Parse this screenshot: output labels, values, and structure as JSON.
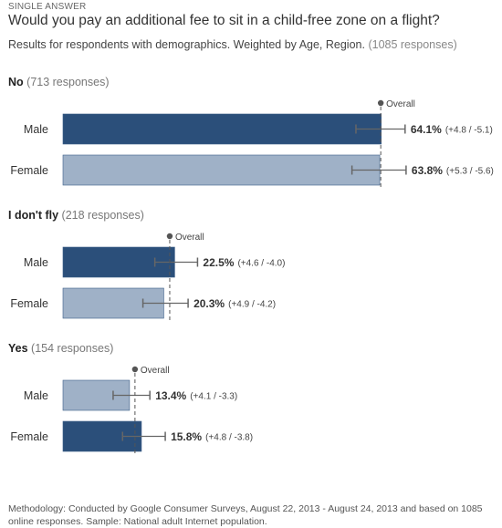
{
  "header": {
    "kicker": "SINGLE ANSWER",
    "title": "Would you pay an additional fee to sit in a child-free zone on a flight?",
    "subtitle_main": "Results for respondents with demographics. Weighted by Age, Region.",
    "subtitle_count": "(1085 responses)"
  },
  "overall_label": "Overall",
  "footer": {
    "methodology": "Methodology: Conducted by Google Consumer Surveys, August 22, 2013 - August 24, 2013 and based on 1085 online responses. Sample: National adult Internet population."
  },
  "colors": {
    "dark": "#2b4f7a",
    "light": "#9fb1c7",
    "errorbar": "#666666",
    "overall_line": "#555555"
  },
  "chart_data": {
    "type": "bar",
    "orientation": "horizontal",
    "xlim": [
      0,
      100
    ],
    "units": "%",
    "groups": [
      {
        "answer": "No",
        "responses_text": "(713 responses)",
        "overall": 64.0,
        "bars": [
          {
            "label": "Male",
            "value": 64.1,
            "value_text": "64.1%",
            "ci_plus": 4.8,
            "ci_minus": 5.1,
            "ci_text": "(+4.8 / -5.1)",
            "shade": "dark"
          },
          {
            "label": "Female",
            "value": 63.8,
            "value_text": "63.8%",
            "ci_plus": 5.3,
            "ci_minus": 5.6,
            "ci_text": "(+5.3 / -5.6)",
            "shade": "light"
          }
        ]
      },
      {
        "answer": "I don't fly",
        "responses_text": "(218 responses)",
        "overall": 21.5,
        "bars": [
          {
            "label": "Male",
            "value": 22.5,
            "value_text": "22.5%",
            "ci_plus": 4.6,
            "ci_minus": 4.0,
            "ci_text": "(+4.6 / -4.0)",
            "shade": "dark"
          },
          {
            "label": "Female",
            "value": 20.3,
            "value_text": "20.3%",
            "ci_plus": 4.9,
            "ci_minus": 4.2,
            "ci_text": "(+4.9 / -4.2)",
            "shade": "light"
          }
        ]
      },
      {
        "answer": "Yes",
        "responses_text": "(154 responses)",
        "overall": 14.5,
        "bars": [
          {
            "label": "Male",
            "value": 13.4,
            "value_text": "13.4%",
            "ci_plus": 4.1,
            "ci_minus": 3.3,
            "ci_text": "(+4.1 / -3.3)",
            "shade": "light"
          },
          {
            "label": "Female",
            "value": 15.8,
            "value_text": "15.8%",
            "ci_plus": 4.8,
            "ci_minus": 3.8,
            "ci_text": "(+4.8 / -3.8)",
            "shade": "dark"
          }
        ]
      }
    ]
  }
}
